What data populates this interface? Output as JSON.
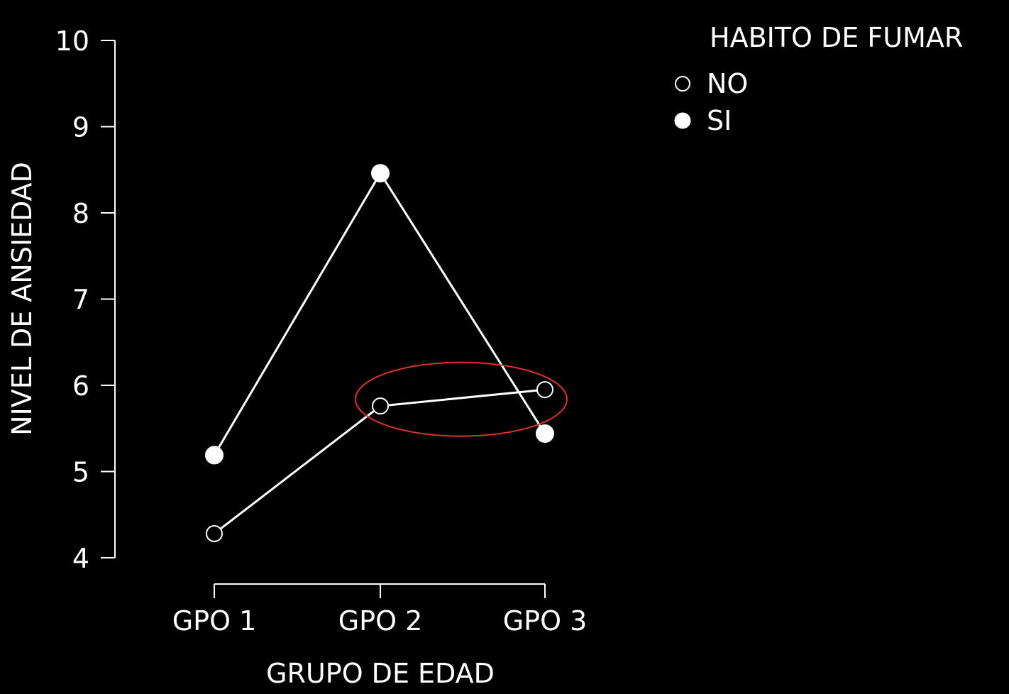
{
  "chart_data": {
    "type": "line",
    "title": "",
    "xlabel": "GRUPO DE EDAD",
    "ylabel": "NIVEL DE ANSIEDAD",
    "categories": [
      "GPO 1",
      "GPO 2",
      "GPO 3"
    ],
    "ylim": [
      4,
      10
    ],
    "yticks": [
      "4",
      "5",
      "6",
      "7",
      "8",
      "9",
      "10"
    ],
    "grid": false,
    "legend": {
      "title": "HABITO DE FUMAR",
      "placement": "top-right",
      "entries": [
        "NO",
        "SI"
      ]
    },
    "series": [
      {
        "name": "NO",
        "marker": "open-circle",
        "values": [
          4.28,
          5.76,
          5.95
        ]
      },
      {
        "name": "SI",
        "marker": "filled-circle",
        "values": [
          5.19,
          8.46,
          5.44
        ]
      }
    ],
    "annotation": {
      "type": "ellipse",
      "color": "#e0302a",
      "highlights": "NO series between GPO 2 and GPO 3"
    },
    "colors": {
      "background": "#000000",
      "foreground": "#ffffff",
      "highlight": "#e0302a"
    }
  }
}
